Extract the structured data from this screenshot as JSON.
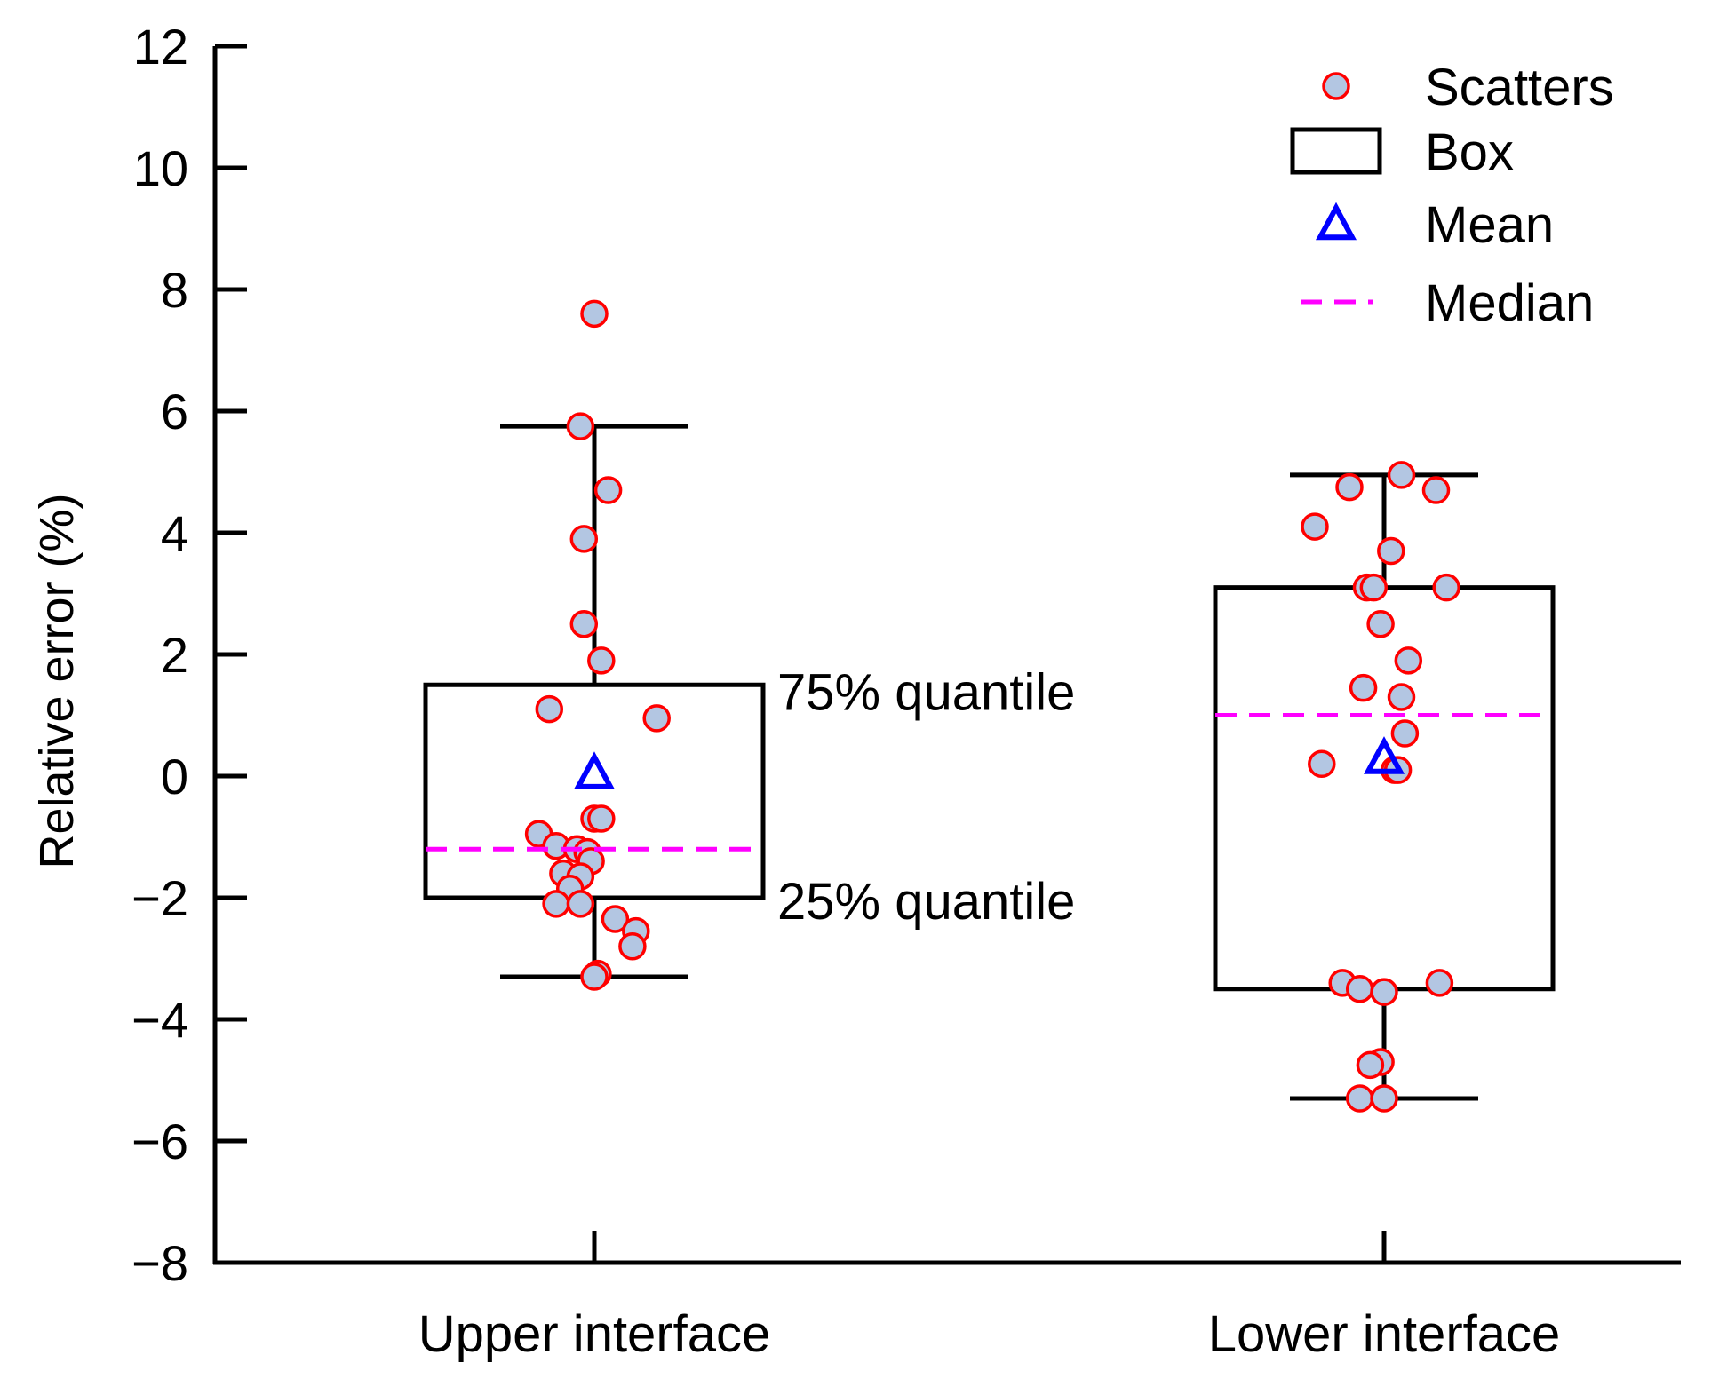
{
  "chart_data": {
    "type": "box",
    "title": "",
    "xlabel": "",
    "ylabel": "Relative error (%)",
    "ylim": [
      -8,
      12
    ],
    "yticks": [
      -8,
      -6,
      -4,
      -2,
      0,
      2,
      4,
      6,
      8,
      10,
      12
    ],
    "ytick_labels": [
      "−8",
      "−6",
      "−4",
      "−2",
      "0",
      "2",
      "4",
      "6",
      "8",
      "10",
      "12"
    ],
    "categories": [
      "Upper interface",
      "Lower interface"
    ],
    "boxes": [
      {
        "name": "Upper interface",
        "q1": -2.0,
        "q3": 1.5,
        "median": -1.2,
        "mean": 0.05,
        "whisker_low": -3.3,
        "whisker_high": 5.75,
        "points": [
          7.6,
          5.75,
          4.7,
          3.9,
          2.5,
          1.9,
          1.1,
          0.95,
          -0.7,
          -0.7,
          -0.95,
          -1.15,
          -1.2,
          -1.25,
          -1.4,
          -1.6,
          -1.65,
          -1.85,
          -2.1,
          -2.1,
          -2.35,
          -2.55,
          -2.8,
          -3.25,
          -3.3
        ],
        "jitter": [
          0.0,
          -0.04,
          0.04,
          -0.03,
          -0.03,
          0.02,
          -0.13,
          0.18,
          0.0,
          0.02,
          -0.16,
          -0.11,
          -0.05,
          -0.02,
          -0.01,
          -0.09,
          -0.04,
          -0.07,
          -0.11,
          -0.04,
          0.06,
          0.12,
          0.11,
          0.01,
          0.0
        ]
      },
      {
        "name": "Lower interface",
        "q1": -3.5,
        "q3": 3.1,
        "median": 1.0,
        "mean": 0.3,
        "whisker_low": -5.3,
        "whisker_high": 4.95,
        "points": [
          4.95,
          4.75,
          4.7,
          4.1,
          3.7,
          3.1,
          3.1,
          3.1,
          2.5,
          1.9,
          1.45,
          1.3,
          0.7,
          0.2,
          0.1,
          0.1,
          -3.4,
          -3.4,
          -3.5,
          -3.55,
          -4.7,
          -4.75,
          -5.3,
          -5.3
        ],
        "jitter": [
          0.05,
          -0.1,
          0.15,
          -0.2,
          0.02,
          -0.05,
          -0.03,
          0.18,
          -0.01,
          0.07,
          -0.06,
          0.05,
          0.06,
          -0.18,
          0.03,
          0.04,
          -0.12,
          0.16,
          -0.07,
          0.0,
          -0.01,
          -0.04,
          -0.07,
          0.0
        ]
      }
    ],
    "annotations": [
      "75% quantile",
      "25% quantile"
    ],
    "legend": {
      "position": "top-right",
      "entries": [
        "Scatters",
        "Box",
        "Mean",
        "Median"
      ]
    },
    "colors": {
      "scatter_fill": "#b3c6e2",
      "scatter_edge": "#ff0000",
      "box": "#000000",
      "mean": "#0000ff",
      "median": "#ff00ff"
    }
  }
}
